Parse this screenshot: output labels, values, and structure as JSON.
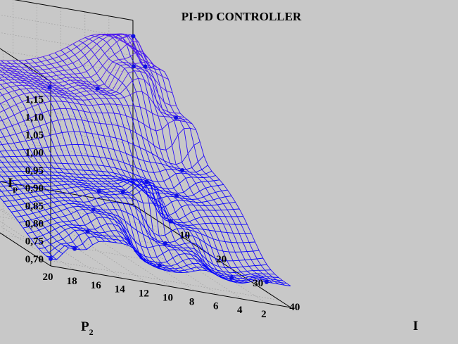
{
  "chart_data": {
    "type": "surface",
    "title": "PI-PD CONTROLLER",
    "zlabel": {
      "main": "I",
      "sub": "p"
    },
    "xlabel": {
      "main": "P",
      "sub": "2"
    },
    "ylabel": "I",
    "x_axis": {
      "name": "P2",
      "range": [
        0,
        20
      ],
      "ticks": [
        "2",
        "4",
        "6",
        "8",
        "10",
        "12",
        "14",
        "16",
        "18",
        "20"
      ]
    },
    "y_axis": {
      "name": "I",
      "range": [
        0,
        43
      ],
      "ticks": [
        "10",
        "20",
        "30",
        "40"
      ]
    },
    "z_axis": {
      "name": "Ip",
      "range": [
        0.68,
        1.2
      ],
      "ticks": [
        "0,70",
        "0,75",
        "0,80",
        "0,85",
        "0,90",
        "0,95",
        "1,00",
        "1,05",
        "1,10",
        "1,15"
      ]
    },
    "grid": true,
    "series_color_low": "#0000ff",
    "series_color_high": "#8a2be2",
    "points": [
      {
        "P2": 20,
        "I": 43,
        "Ip": 0.7
      },
      {
        "P2": 18,
        "I": 43,
        "Ip": 0.74
      },
      {
        "P2": 16,
        "I": 40,
        "Ip": 0.78
      },
      {
        "P2": 14,
        "I": 35,
        "Ip": 0.82
      },
      {
        "P2": 12,
        "I": 30,
        "Ip": 0.85
      },
      {
        "P2": 10,
        "I": 30,
        "Ip": 0.86
      },
      {
        "P2": 8,
        "I": 30,
        "Ip": 0.9
      },
      {
        "P2": 10,
        "I": 10,
        "Ip": 1.02
      },
      {
        "P2": 6,
        "I": 10,
        "Ip": 1.04
      },
      {
        "P2": 3,
        "I": 10,
        "Ip": 1.12
      },
      {
        "P2": 1.5,
        "I": 5,
        "Ip": 1.18
      },
      {
        "P2": 0.5,
        "I": 5,
        "Ip": 1.1
      },
      {
        "P2": 1,
        "I": 15,
        "Ip": 1.02
      },
      {
        "P2": 2,
        "I": 20,
        "Ip": 0.9
      },
      {
        "P2": 4,
        "I": 25,
        "Ip": 0.85
      },
      {
        "P2": 6,
        "I": 30,
        "Ip": 0.8
      },
      {
        "P2": 8,
        "I": 35,
        "Ip": 0.76
      },
      {
        "P2": 10,
        "I": 40,
        "Ip": 0.72
      },
      {
        "P2": 4,
        "I": 40,
        "Ip": 0.72
      },
      {
        "P2": 2,
        "I": 43,
        "Ip": 0.74
      }
    ]
  }
}
